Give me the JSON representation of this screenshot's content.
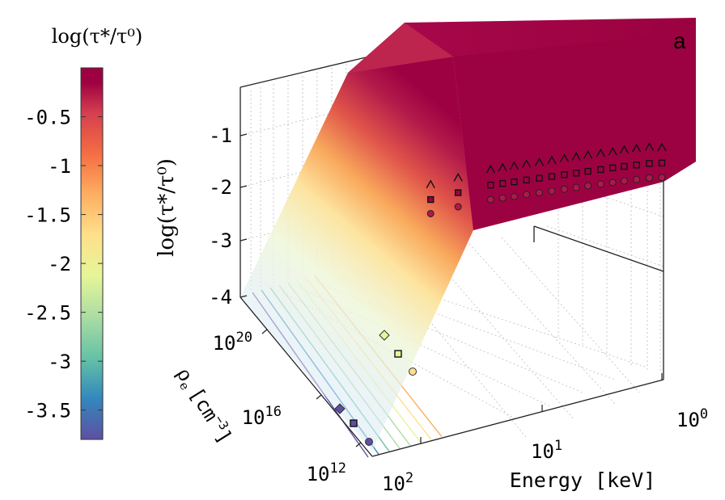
{
  "chart_data": {
    "type": "surface3d",
    "panel_label": "a",
    "colorbar": {
      "title": "log(τ*/τ⁰)",
      "range": [
        -3.8,
        0
      ],
      "ticks": [
        "-0.5",
        "-1",
        "-1.5",
        "-2",
        "-2.5",
        "-3",
        "-3.5"
      ],
      "tick_values": [
        -0.5,
        -1,
        -1.5,
        -2,
        -2.5,
        -3,
        -3.5
      ],
      "colormap": [
        "#5e4fa2",
        "#3288bd",
        "#66c2a5",
        "#abdda4",
        "#e6f598",
        "#fee08b",
        "#fdae61",
        "#f46d43",
        "#d53e4f",
        "#9e0142"
      ]
    },
    "z_axis": {
      "label": "log(τ*/τ⁰)",
      "range": [
        -4,
        0
      ],
      "ticks": [
        "-1",
        "-2",
        "-3",
        "-4"
      ],
      "tick_values": [
        -1,
        -2,
        -3,
        -4
      ]
    },
    "x_axis": {
      "label": "Energy [keV]",
      "scale": "log",
      "range_log10": [
        0,
        2
      ],
      "ticks": [
        {
          "base": "10",
          "exp": "0"
        },
        {
          "base": "10",
          "exp": "1"
        },
        {
          "base": "10",
          "exp": "2"
        }
      ]
    },
    "y_axis": {
      "label": "ρe [cm⁻³]",
      "label_base": "ρ",
      "label_sub": "e",
      "label_unit": "[cm",
      "label_exp": "−3",
      "label_close": "]",
      "scale": "log",
      "range_log10": [
        11,
        23
      ],
      "ticks": [
        {
          "base": "10",
          "exp": "12"
        },
        {
          "base": "10",
          "exp": "16"
        },
        {
          "base": "10",
          "exp": "20"
        }
      ]
    },
    "surface": {
      "plateau_value": 0,
      "description": "log(τ*/τ⁰) saturates at 0 for high density and drops linearly toward low density"
    },
    "contour_levels": [
      -3.5,
      -3.2,
      -2.9,
      -2.6,
      -2.3,
      -2.0,
      -1.7,
      -1.4
    ],
    "series": [
      {
        "name": "triangle",
        "marker": "^",
        "energy_keV": [
          1,
          1.3,
          1.7,
          2.2,
          2.8,
          3.6,
          4.7,
          6,
          7.7,
          10,
          13,
          17,
          22,
          28,
          36,
          60,
          90
        ],
        "log_ratio": [
          -0.7,
          -0.95,
          -1.0,
          -1.05,
          -1.05,
          -1.08,
          -1.1,
          -1.1,
          -1.12,
          -1.12,
          -1.13,
          -1.14,
          -1.15,
          -1.15,
          -1.16,
          -1.2,
          -1.3
        ]
      },
      {
        "name": "square",
        "marker": "s",
        "energy_keV": [
          1,
          1.3,
          1.7,
          2.2,
          2.8,
          3.6,
          4.7,
          6,
          7.7,
          10,
          13,
          17,
          22,
          28,
          36,
          60,
          90
        ],
        "log_ratio": [
          -1.3,
          -1.45,
          -1.5,
          -1.55,
          -1.58,
          -1.6,
          -1.62,
          -1.62,
          -1.65,
          -1.66,
          -1.68,
          -1.7,
          -1.7,
          -1.72,
          -1.75,
          -1.85,
          -1.95
        ]
      },
      {
        "name": "circle",
        "marker": "o",
        "energy_keV": [
          1,
          1.3,
          1.7,
          2.2,
          2.8,
          3.6,
          4.7,
          6,
          7.7,
          10,
          13,
          17,
          22,
          28,
          36,
          60,
          90
        ],
        "log_ratio": [
          -1.7,
          -1.85,
          -1.9,
          -1.95,
          -1.97,
          -2.0,
          -2.02,
          -2.03,
          -2.05,
          -2.06,
          -2.08,
          -2.1,
          -2.1,
          -2.12,
          -2.15,
          -2.3,
          -2.4
        ]
      },
      {
        "name": "projected",
        "marker": "mixed",
        "points": [
          {
            "marker": "diamond",
            "density_log10": 19.5,
            "value": -2.1
          },
          {
            "marker": "square",
            "density_log10": 19.5,
            "value": -2.0
          },
          {
            "marker": "circle",
            "density_log10": 19.5,
            "value": -1.9
          },
          {
            "marker": "diamond",
            "density_log10": 13.5,
            "value": -3.7
          },
          {
            "marker": "square",
            "density_log10": 13.5,
            "value": -3.6
          },
          {
            "marker": "circle",
            "density_log10": 13.5,
            "value": -3.55
          }
        ]
      }
    ]
  }
}
